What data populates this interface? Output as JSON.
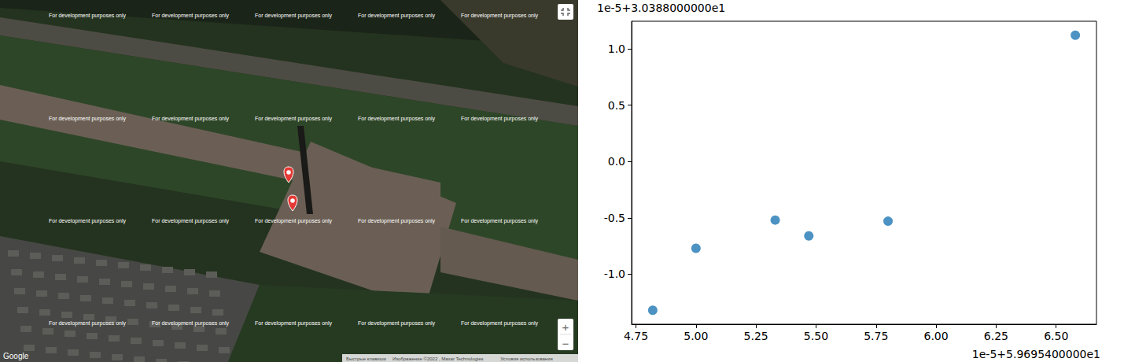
{
  "map": {
    "watermark": "For development purposes only",
    "logo": "Google",
    "attribution": [
      "Быстрые клавиши",
      "Изображение ©2022 , Maxar Technologies",
      "Условия использования"
    ],
    "controls": [
      "+",
      "−"
    ]
  },
  "chart_data": {
    "type": "scatter",
    "color": "#1f77b4",
    "marker": "circle",
    "grid": false,
    "x": [
      4.82,
      5.0,
      5.33,
      5.47,
      5.8,
      6.58
    ],
    "values": [
      -1.32,
      -0.77,
      -0.52,
      -0.66,
      -0.53,
      1.12
    ],
    "xlim": [
      4.732,
      6.668
    ],
    "ylim": [
      -1.444,
      1.244
    ],
    "xticks": [
      {
        "value": 4.75,
        "label": "4.75"
      },
      {
        "value": 5.0,
        "label": "5.00"
      },
      {
        "value": 5.25,
        "label": "5.25"
      },
      {
        "value": 5.5,
        "label": "5.50"
      },
      {
        "value": 5.75,
        "label": "5.75"
      },
      {
        "value": 6.0,
        "label": "6.00"
      },
      {
        "value": 6.25,
        "label": "6.25"
      },
      {
        "value": 6.5,
        "label": "6.50"
      }
    ],
    "yticks": [
      {
        "value": -1.0,
        "label": "-1.0"
      },
      {
        "value": -0.5,
        "label": "-0.5"
      },
      {
        "value": 0.0,
        "label": "0.0"
      },
      {
        "value": 0.5,
        "label": "0.5"
      },
      {
        "value": 1.0,
        "label": "1.0"
      }
    ],
    "annotations": [
      {
        "text": "1e-5+3.0388000000e1",
        "axis": "y"
      },
      {
        "text": "1e-5+5.9695400000e1",
        "axis": "x"
      }
    ]
  }
}
